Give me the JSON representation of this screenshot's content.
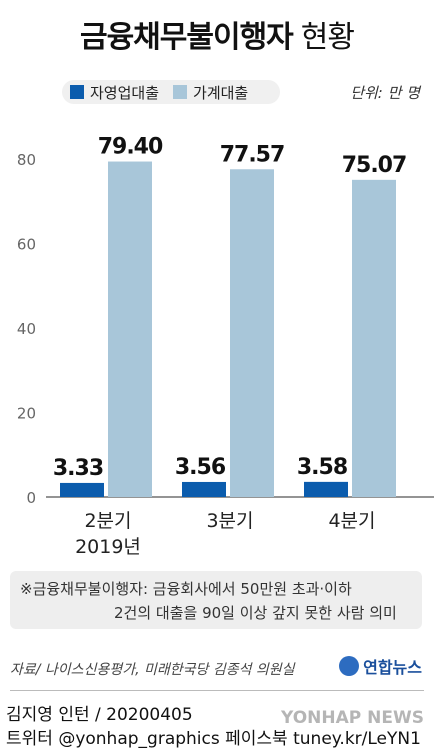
{
  "title": {
    "main": "금융채무불이행자",
    "sub": "현황"
  },
  "legend": {
    "items": [
      {
        "label": "자영업대출",
        "color": "#0b5cad"
      },
      {
        "label": "가계대출",
        "color": "#a8c6d9"
      }
    ]
  },
  "unit": "단위: 만 명",
  "chart_data": {
    "type": "bar",
    "categories": [
      "2분기\n2019년",
      "3분기",
      "4분기"
    ],
    "category_lines": [
      [
        "2분기",
        "2019년"
      ],
      [
        "3분기"
      ],
      [
        "4분기"
      ]
    ],
    "series": [
      {
        "name": "자영업대출",
        "values": [
          3.33,
          3.56,
          3.58
        ],
        "labels": [
          "3.33",
          "3.56",
          "3.58"
        ],
        "color": "#0b5cad"
      },
      {
        "name": "가계대출",
        "values": [
          79.4,
          77.57,
          75.07
        ],
        "labels": [
          "79.40",
          "77.57",
          "75.07"
        ],
        "color": "#a8c6d9"
      }
    ],
    "yticks": [
      "0",
      "20",
      "40",
      "60",
      "80"
    ],
    "ylim": [
      0,
      90
    ],
    "grid": false
  },
  "note": {
    "line1": "※금융채무불이행자: 금융회사에서 50만원 초과·이하",
    "line2": "2건의 대출을 90일 이상 갚지 못한 사람 의미"
  },
  "source": "자료/ 나이스신용평가, 미래한국당 김종석 의원실",
  "brand": "연합뉴스",
  "credit": "김지영 인턴 / 20200405",
  "social": "트위터 @yonhap_graphics  페이스북 tuney.kr/LeYN1",
  "watermark": "YONHAP NEWS"
}
